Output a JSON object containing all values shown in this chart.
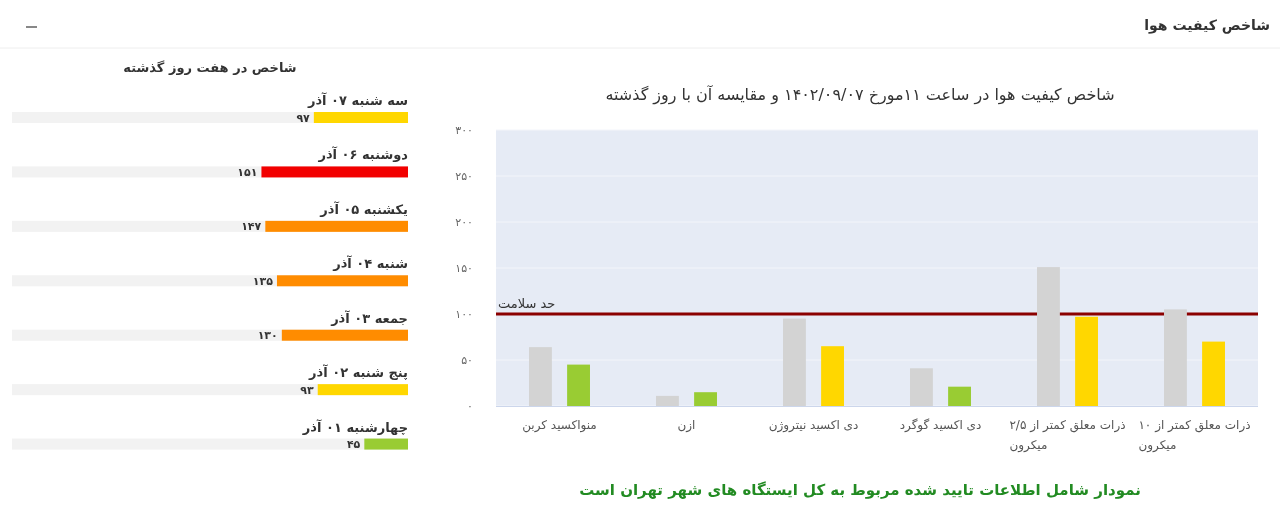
{
  "chart_data": [
    {
      "type": "other",
      "title": "شاخص کیفیت هوا"
    },
    {
      "type": "bar",
      "orientation": "horizontal",
      "title": "شاخص در هفت روز گذشته",
      "categories": [
        "سه شنبه ۰۷ آذر",
        "دوشنبه ۰۶ آذر",
        "یکشنبه ۰۵ آذر",
        "شنبه ۰۴ آذر",
        "جمعه ۰۳ آذر",
        "پنج شنبه ۰۲ آذر",
        "چهارشنبه ۰۱ آذر"
      ],
      "values": [
        97,
        151,
        147,
        135,
        130,
        93,
        45
      ],
      "colors": [
        "#ffd700",
        "#f20000",
        "#ff8c00",
        "#ff8c00",
        "#ff8c00",
        "#ffd700",
        "#99cc33"
      ],
      "value_labels": [
        "۹۷",
        "۱۵۱",
        "۱۴۷",
        "۱۳۵",
        "۱۳۰",
        "۹۳",
        "۴۵"
      ],
      "xlim": [
        408,
        0
      ],
      "tick_labels": "y"
    },
    {
      "type": "bar",
      "title": "شاخص کیفیت هوا در ساعت ۱۱مورخ ۱۴۰۲/۰۹/۰۷ و مقایسه آن با روز گذشته",
      "categories": [
        "منواکسید کربن",
        "ازن",
        "دی اکسید نیتروژن",
        "دی اکسید گوگرد",
        "ذرات معلق کمتر از ۲/۵ میکرون",
        "ذرات معلق کمتر از ۱۰ میکرون"
      ],
      "series": [
        {
          "color": "#d3d3d3",
          "values": [
            64,
            11,
            95,
            41,
            151,
            105
          ]
        },
        {
          "colors": [
            "#99cc33",
            "#99cc33",
            "#ffd700",
            "#99cc33",
            "#ffd700",
            "#ffd700"
          ],
          "values": [
            45,
            15,
            65,
            21,
            97,
            70
          ]
        }
      ],
      "ylim": [
        0,
        300
      ],
      "yticks": [
        {
          "value": 0,
          "label": "۰"
        },
        {
          "value": 50,
          "label": "۵۰"
        },
        {
          "value": 100,
          "label": "۱۰۰"
        },
        {
          "value": 150,
          "label": "۱۵۰"
        },
        {
          "value": 200,
          "label": "۲۰۰"
        },
        {
          "value": 250,
          "label": "۲۵۰"
        },
        {
          "value": 300,
          "label": "۳۰۰"
        }
      ],
      "grid": "y",
      "ref_lines": [
        {
          "axis": "y",
          "value": 100,
          "label": "حد سلامت",
          "color": "#8b0000"
        }
      ],
      "annotations": [
        "نمودار شامل اطلاعات تایید شده مربوط به کل ایستگاه های شهر تهران است"
      ]
    }
  ]
}
